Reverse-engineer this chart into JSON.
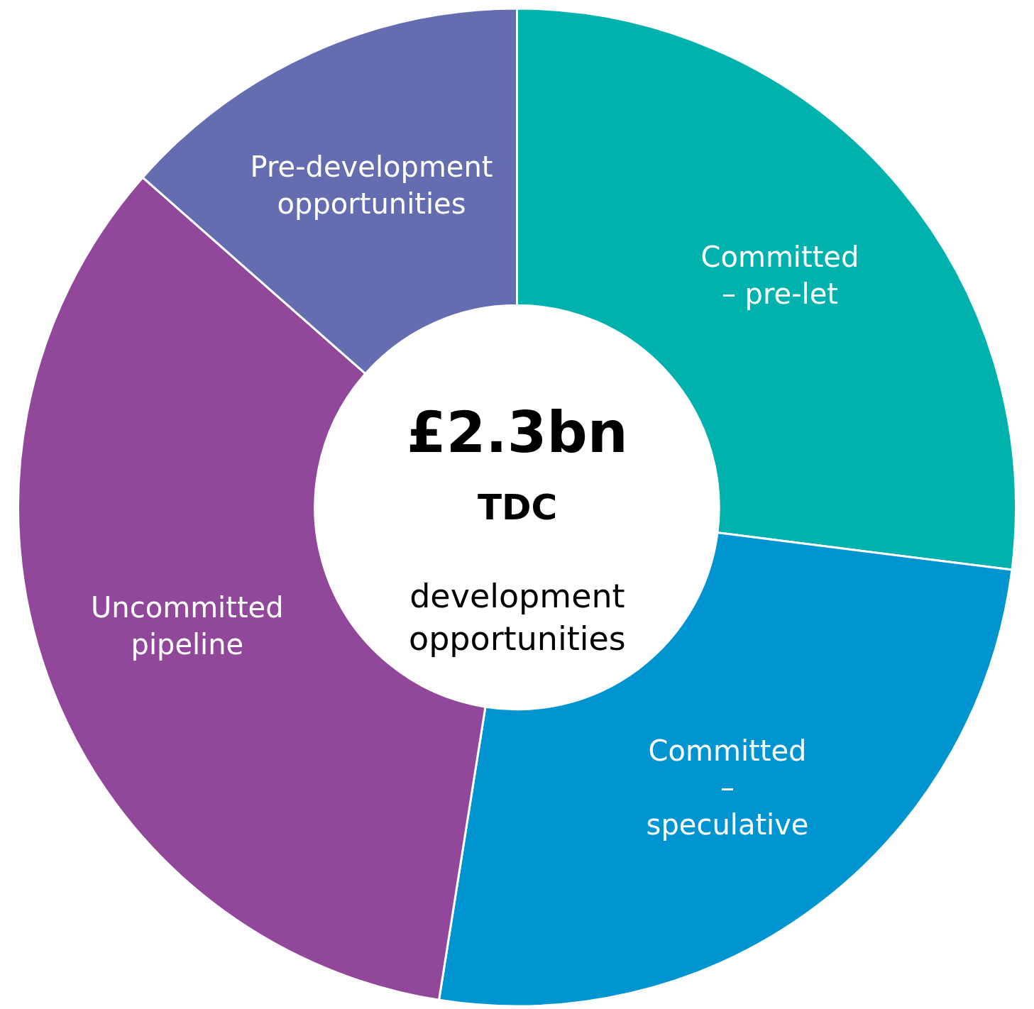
{
  "chart_data": {
    "type": "donut",
    "categories": [
      "Committed – pre-let",
      "Committed – speculative",
      "Uncommitted pipeline",
      "Pre-development opportunities"
    ],
    "values": [
      27,
      25.5,
      34,
      13.5
    ],
    "colors": [
      "#00b2ae",
      "#0095d0",
      "#91479a",
      "#646db0"
    ],
    "annotations": [
      "£2.3bn",
      "TDC",
      "development opportunities"
    ]
  }
}
